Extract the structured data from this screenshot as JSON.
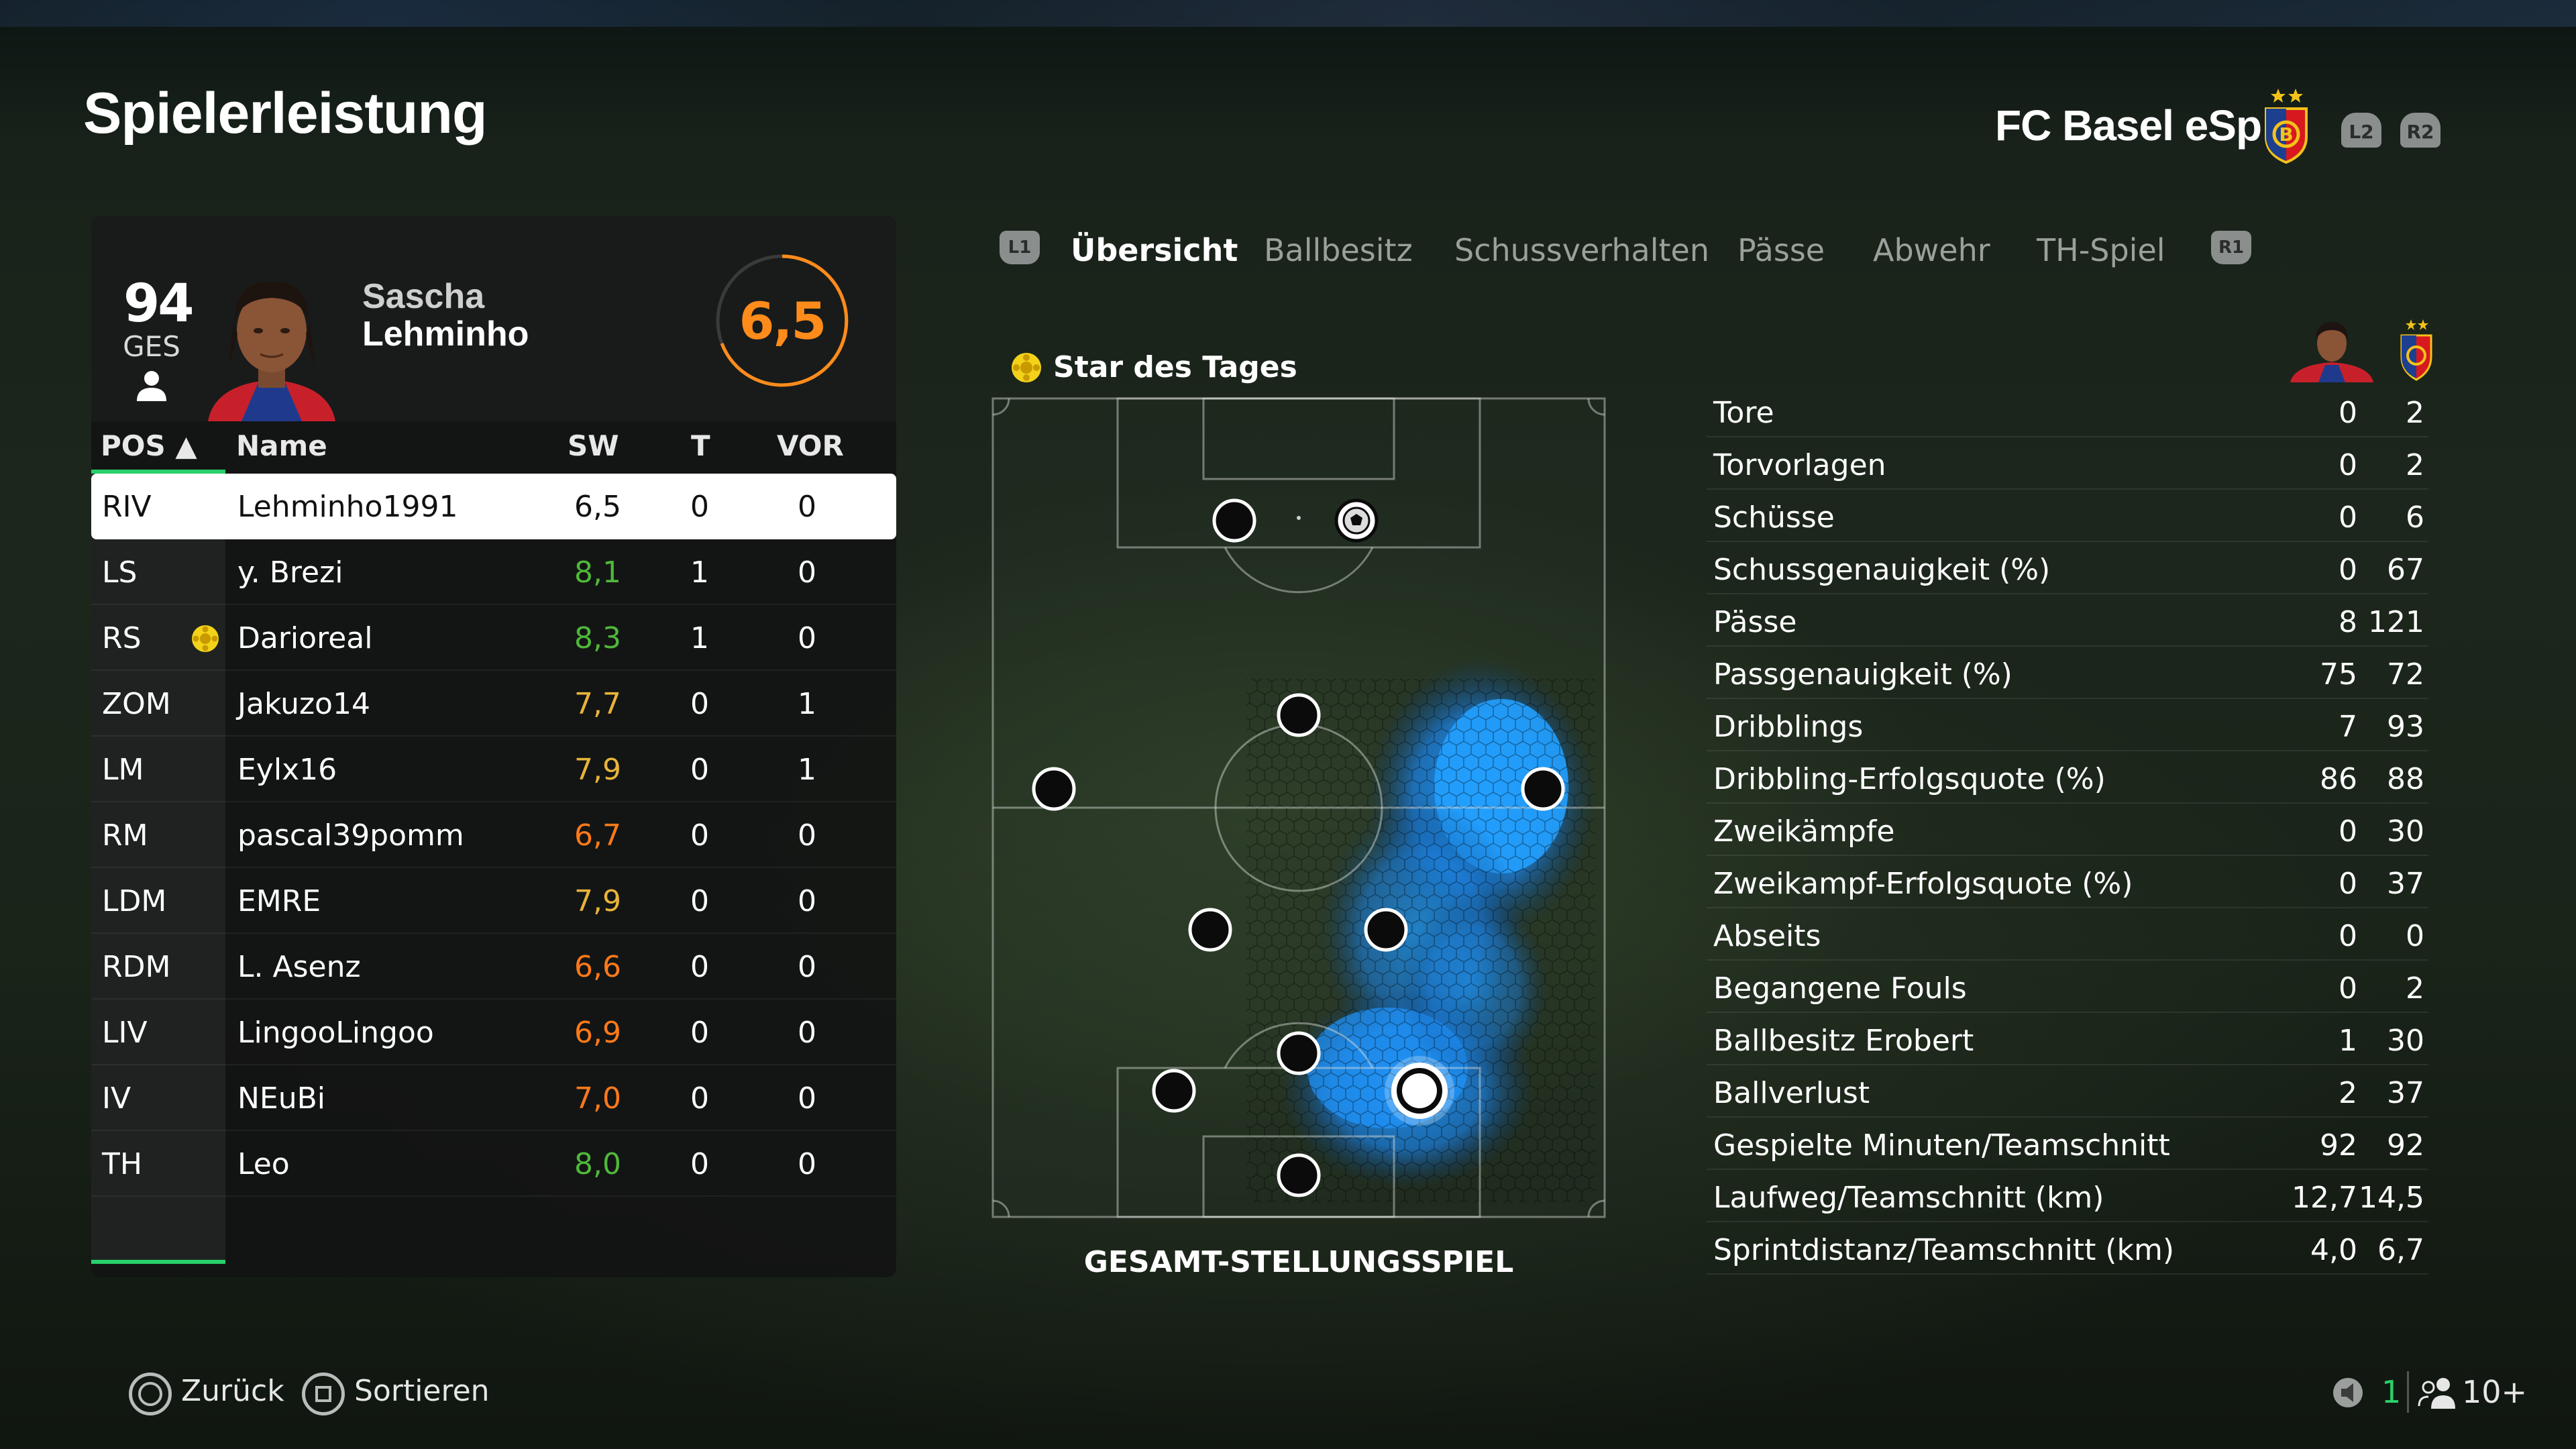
{
  "header": {
    "title": "Spielerleistung",
    "team_name": "FC Basel eSp",
    "l2": "L2",
    "r2": "R2"
  },
  "player_card": {
    "overall": "94",
    "overall_label": "GES",
    "first_name": "Sascha",
    "last_name": "Lehminho",
    "rating": "6,5"
  },
  "table": {
    "headers": {
      "pos": "POS ▲",
      "name": "Name",
      "sw": "SW",
      "t": "T",
      "vor": "VOR"
    },
    "rows": [
      {
        "pos": "RIV",
        "name": "Lehminho1991",
        "sw": "6,5",
        "t": "0",
        "vor": "0",
        "sw_color": "#111111",
        "selected": true,
        "star": false
      },
      {
        "pos": "LS",
        "name": "y. Brezi",
        "sw": "8,1",
        "t": "1",
        "vor": "0",
        "sw_color": "#4fb83a",
        "selected": false,
        "star": false
      },
      {
        "pos": "RS",
        "name": "Darioreal",
        "sw": "8,3",
        "t": "1",
        "vor": "0",
        "sw_color": "#4fb83a",
        "selected": false,
        "star": true
      },
      {
        "pos": "ZOM",
        "name": "Jakuzo14",
        "sw": "7,7",
        "t": "0",
        "vor": "1",
        "sw_color": "#e9b43a",
        "selected": false,
        "star": false
      },
      {
        "pos": "LM",
        "name": "Eylx16",
        "sw": "7,9",
        "t": "0",
        "vor": "1",
        "sw_color": "#e9b43a",
        "selected": false,
        "star": false
      },
      {
        "pos": "RM",
        "name": "pascal39pomm",
        "sw": "6,7",
        "t": "0",
        "vor": "0",
        "sw_color": "#ff7a1a",
        "selected": false,
        "star": false
      },
      {
        "pos": "LDM",
        "name": "EMRE",
        "sw": "7,9",
        "t": "0",
        "vor": "0",
        "sw_color": "#e9b43a",
        "selected": false,
        "star": false
      },
      {
        "pos": "RDM",
        "name": "L. Asenz",
        "sw": "6,6",
        "t": "0",
        "vor": "0",
        "sw_color": "#ff7a1a",
        "selected": false,
        "star": false
      },
      {
        "pos": "LIV",
        "name": "LingooLingoo",
        "sw": "6,9",
        "t": "0",
        "vor": "0",
        "sw_color": "#ff7a1a",
        "selected": false,
        "star": false
      },
      {
        "pos": "IV",
        "name": "NEuBi",
        "sw": "7,0",
        "t": "0",
        "vor": "0",
        "sw_color": "#ff7a1a",
        "selected": false,
        "star": false
      },
      {
        "pos": "TH",
        "name": "Leo",
        "sw": "8,0",
        "t": "0",
        "vor": "0",
        "sw_color": "#4fb83a",
        "selected": false,
        "star": false
      }
    ]
  },
  "tabs": {
    "l1": "L1",
    "r1": "R1",
    "items": [
      "Übersicht",
      "Ballbesitz",
      "Schussverhalten",
      "Pässe",
      "Abwehr",
      "TH-Spiel"
    ],
    "active_index": 0
  },
  "pitch": {
    "star_label": "Star des Tages",
    "caption": "GESAMT-STELLUNGSSPIEL"
  },
  "stats": [
    {
      "label": "Tore",
      "player": "0",
      "team": "2"
    },
    {
      "label": "Torvorlagen",
      "player": "0",
      "team": "2"
    },
    {
      "label": "Schüsse",
      "player": "0",
      "team": "6"
    },
    {
      "label": "Schussgenauigkeit (%)",
      "player": "0",
      "team": "67"
    },
    {
      "label": "Pässe",
      "player": "8",
      "team": "121"
    },
    {
      "label": "Passgenauigkeit (%)",
      "player": "75",
      "team": "72"
    },
    {
      "label": "Dribblings",
      "player": "7",
      "team": "93"
    },
    {
      "label": "Dribbling-Erfolgsquote (%)",
      "player": "86",
      "team": "88"
    },
    {
      "label": "Zweikämpfe",
      "player": "0",
      "team": "30"
    },
    {
      "label": "Zweikampf-Erfolgsquote (%)",
      "player": "0",
      "team": "37"
    },
    {
      "label": "Abseits",
      "player": "0",
      "team": "0"
    },
    {
      "label": "Begangene Fouls",
      "player": "0",
      "team": "2"
    },
    {
      "label": "Ballbesitz Erobert",
      "player": "1",
      "team": "30"
    },
    {
      "label": "Ballverlust",
      "player": "2",
      "team": "37"
    },
    {
      "label": "Gespielte Minuten/Teamschnitt",
      "player": "92",
      "team": "92"
    },
    {
      "label": "Laufweg/Teamschnitt (km)",
      "player": "12,7",
      "team": "14,5"
    },
    {
      "label": "Sprintdistanz/Teamschnitt (km)",
      "player": "4,0",
      "team": "6,7"
    }
  ],
  "footer": {
    "back": "Zurück",
    "sort": "Sortieren",
    "mic_count": "1",
    "players_count": "10+"
  },
  "colors": {
    "accent_green": "#27d06a",
    "rating_orange": "#ff8c1a",
    "heatmap_blue": "#1e90ff"
  }
}
